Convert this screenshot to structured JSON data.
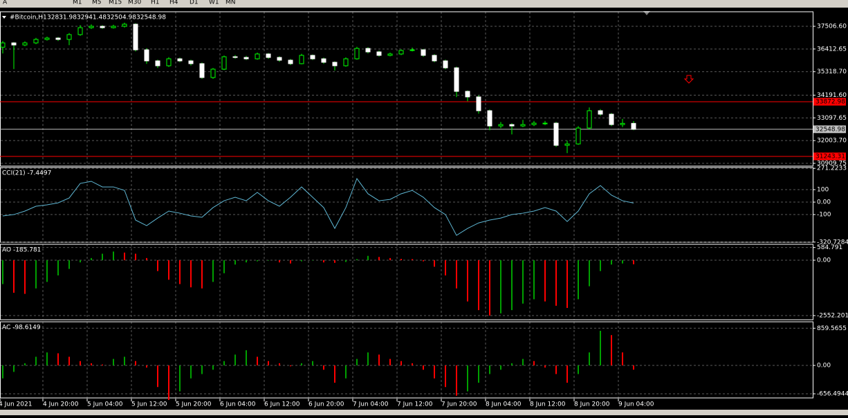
{
  "toolbar": {
    "items": [
      "A",
      "M1",
      "M5",
      "M15",
      "M30",
      "H1",
      "H4",
      "D1",
      "W1",
      "MN"
    ]
  },
  "time_axis": {
    "labels": [
      "4 Jun 2021",
      "4 Jun 20:00",
      "5 Jun 04:00",
      "5 Jun 12:00",
      "5 Jun 20:00",
      "6 Jun 04:00",
      "6 Jun 12:00",
      "6 Jun 20:00",
      "7 Jun 04:00",
      "7 Jun 12:00",
      "7 Jun 20:00",
      "8 Jun 04:00",
      "8 Jun 12:00",
      "8 Jun 20:00",
      "9 Jun 04:00"
    ]
  },
  "chart_data": [
    {
      "type": "candlestick",
      "title": "#Bitcoin,H1",
      "bull_color": "#00ff00",
      "bear_color": "#ffffff",
      "candles": [
        [
          36500,
          36800,
          36200,
          36707
        ],
        [
          36707,
          36750,
          35450,
          36607
        ],
        [
          36607,
          36780,
          36550,
          36707
        ],
        [
          36707,
          36950,
          36650,
          36874
        ],
        [
          36874,
          37010,
          36820,
          36940
        ],
        [
          36940,
          36990,
          36800,
          36874
        ],
        [
          36874,
          37180,
          36600,
          37107
        ],
        [
          37107,
          37560,
          37050,
          37440
        ],
        [
          37440,
          37600,
          37380,
          37507
        ],
        [
          37507,
          37560,
          37380,
          37440
        ],
        [
          37440,
          37580,
          37400,
          37507
        ],
        [
          37507,
          37680,
          37450,
          37607
        ],
        [
          37607,
          37650,
          36300,
          36374
        ],
        [
          36374,
          36450,
          35700,
          35841
        ],
        [
          35841,
          35900,
          35500,
          35607
        ],
        [
          35607,
          36020,
          35550,
          35941
        ],
        [
          35941,
          36000,
          35780,
          35841
        ],
        [
          35841,
          35900,
          35620,
          35707
        ],
        [
          35707,
          35760,
          34980,
          35041
        ],
        [
          35041,
          35500,
          34980,
          35441
        ],
        [
          35441,
          36100,
          35400,
          36040
        ],
        [
          36040,
          36120,
          35950,
          36007
        ],
        [
          36007,
          36080,
          35880,
          35941
        ],
        [
          35941,
          36240,
          35900,
          36174
        ],
        [
          36174,
          36220,
          35940,
          36007
        ],
        [
          36007,
          36060,
          35800,
          35874
        ],
        [
          35874,
          35930,
          35640,
          35707
        ],
        [
          35707,
          36180,
          35680,
          36107
        ],
        [
          36107,
          36150,
          35880,
          35941
        ],
        [
          35941,
          36000,
          35700,
          35774
        ],
        [
          35774,
          35820,
          35380,
          35607
        ],
        [
          35607,
          36010,
          35560,
          35941
        ],
        [
          35941,
          36520,
          35900,
          36440
        ],
        [
          36440,
          36500,
          36200,
          36274
        ],
        [
          36274,
          36330,
          36050,
          36107
        ],
        [
          36107,
          36240,
          36060,
          36174
        ],
        [
          36174,
          36400,
          36120,
          36340
        ],
        [
          36340,
          36480,
          36300,
          36374
        ],
        [
          36374,
          36420,
          36040,
          36107
        ],
        [
          36107,
          36160,
          35780,
          35841
        ],
        [
          35841,
          35900,
          35440,
          35507
        ],
        [
          35507,
          35560,
          34100,
          34374
        ],
        [
          34374,
          34420,
          33900,
          34108
        ],
        [
          34108,
          34180,
          33300,
          33442
        ],
        [
          33442,
          33500,
          32500,
          32708
        ],
        [
          32708,
          32900,
          32600,
          32775
        ],
        [
          32775,
          32840,
          32300,
          32708
        ],
        [
          32708,
          33000,
          32650,
          32775
        ],
        [
          32775,
          32950,
          32700,
          32842
        ],
        [
          32842,
          32950,
          32750,
          32842
        ],
        [
          32842,
          32900,
          31700,
          31776
        ],
        [
          31776,
          32000,
          31400,
          31842
        ],
        [
          31842,
          32700,
          31800,
          32608
        ],
        [
          32608,
          33600,
          32550,
          33442
        ],
        [
          33442,
          33520,
          33200,
          33275
        ],
        [
          33275,
          33330,
          32700,
          32775
        ],
        [
          32775,
          33050,
          32650,
          32831.98
        ],
        [
          32831.98,
          32941.48,
          32504.98,
          32548.98
        ]
      ],
      "levels": [
        {
          "value": 33872.98,
          "color": "#ff0000"
        },
        {
          "value": 32548.98,
          "color": "#c0c0c0"
        },
        {
          "value": 31243.31,
          "color": "#ff0000"
        }
      ],
      "ylim": [
        30776,
        38206
      ],
      "yticks": [
        {
          "value": 37506.6,
          "label": "37506.60"
        },
        36412.65,
        {
          "value": 35318.7,
          "label": "35318.70"
        },
        {
          "value": 34191.6,
          "label": "34191.60"
        },
        33097.65,
        {
          "value": 32003.7,
          "label": "32003.70"
        },
        30909.75
      ],
      "grid": true
    },
    {
      "type": "line",
      "title": "CCI(21) -7.4497",
      "color": "#5fb7d4",
      "values": [
        -111,
        -100,
        -72,
        -33,
        -22,
        -6,
        33,
        150,
        167,
        122,
        122,
        94,
        -144,
        -189,
        -128,
        -72,
        -89,
        -111,
        -122,
        -44,
        11,
        39,
        11,
        78,
        11,
        -33,
        39,
        122,
        39,
        -44,
        -211,
        -44,
        189,
        67,
        11,
        22,
        67,
        94,
        39,
        -44,
        -100,
        -267,
        -211,
        -167,
        -144,
        -128,
        -100,
        -89,
        -72,
        -44,
        -72,
        -156,
        -72,
        67,
        133,
        56,
        11,
        -7.4497
      ],
      "ylim": [
        -322,
        278
      ],
      "yticks": [
        271.2233,
        100,
        {
          "value": 0,
          "label": "0.00"
        },
        -100,
        -320.7284
      ],
      "grid": true
    },
    {
      "type": "histogram",
      "title": "AO -185.781",
      "up_color": "#00a000",
      "down_color": "#ff0000",
      "values": [
        -1100,
        -1500,
        -1550,
        -1300,
        -1000,
        -700,
        -400,
        -100,
        100,
        300,
        400,
        350,
        300,
        100,
        -500,
        -900,
        -1100,
        -1250,
        -1300,
        -1000,
        -600,
        -200,
        -100,
        -50,
        -20,
        -100,
        -150,
        -50,
        0,
        -100,
        -120,
        -80,
        50,
        200,
        150,
        100,
        60,
        50,
        -50,
        -300,
        -700,
        -1300,
        -1900,
        -2300,
        -2550,
        -2450,
        -2300,
        -2000,
        -1800,
        -1900,
        -2100,
        -2200,
        -1800,
        -1200,
        -500,
        -200,
        -150,
        -185.781
      ],
      "ylim": [
        -2743,
        734
      ],
      "yticks": [
        584.791,
        {
          "value": 0,
          "label": "0.00"
        },
        -2552.201
      ],
      "grid": true
    },
    {
      "type": "histogram",
      "title": "AC -98.6149",
      "up_color": "#00a000",
      "down_color": "#ff0000",
      "values": [
        -300,
        -150,
        50,
        200,
        300,
        280,
        200,
        100,
        50,
        20,
        150,
        200,
        100,
        -50,
        -500,
        -800,
        -600,
        -300,
        -200,
        -100,
        100,
        250,
        350,
        200,
        100,
        50,
        -20,
        50,
        100,
        -100,
        -400,
        -300,
        150,
        300,
        250,
        150,
        100,
        50,
        -100,
        -300,
        -500,
        -700,
        -600,
        -400,
        -200,
        -100,
        50,
        150,
        100,
        -50,
        -200,
        -400,
        -200,
        300,
        800,
        700,
        300,
        -98.6149
      ],
      "ylim": [
        -752,
        1008
      ],
      "yticks": [
        859.5655,
        {
          "value": 0,
          "label": "0.00"
        },
        -656.4944
      ],
      "grid": true
    }
  ]
}
